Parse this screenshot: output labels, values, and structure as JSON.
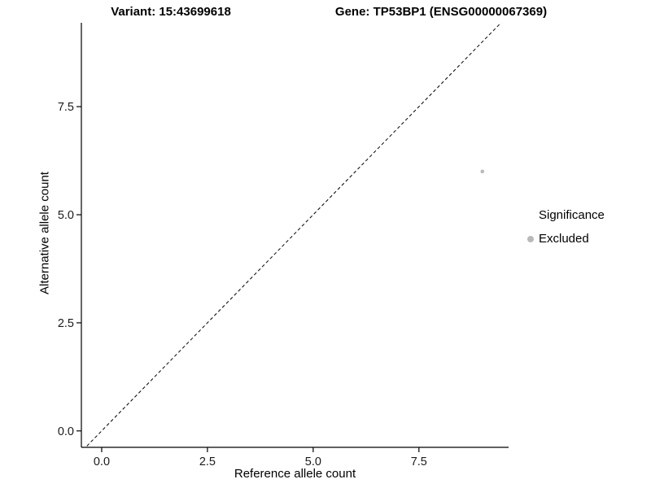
{
  "header": {
    "variant_title": "Variant: 15:43699618",
    "gene_title": "Gene: TP53BP1 (ENSG00000067369)"
  },
  "chart_data": {
    "type": "scatter",
    "title": "Variant: 15:43699618 / Gene: TP53BP1 (ENSG00000067369)",
    "xlabel": "Reference allele count",
    "ylabel": "Alternative allele count",
    "xlim": [
      -0.48,
      9.62
    ],
    "ylim": [
      -0.38,
      9.44
    ],
    "xticks": [
      0.0,
      2.5,
      5.0,
      7.5
    ],
    "yticks": [
      0.0,
      2.5,
      5.0,
      7.5
    ],
    "tick_decimals": 1,
    "grid": false,
    "reference_line": {
      "type": "identity",
      "slope": 1,
      "intercept": 0,
      "style": "dashed",
      "color": "#000000"
    },
    "series": [
      {
        "name": "Excluded",
        "color": "#b9b9b9",
        "point_radius": 2.3,
        "points": [
          {
            "x": 9,
            "y": 6
          }
        ]
      }
    ],
    "legend": {
      "position": "right",
      "title": "Significance",
      "entries": [
        {
          "label": "Excluded",
          "color": "#b9b9b9"
        }
      ]
    }
  }
}
